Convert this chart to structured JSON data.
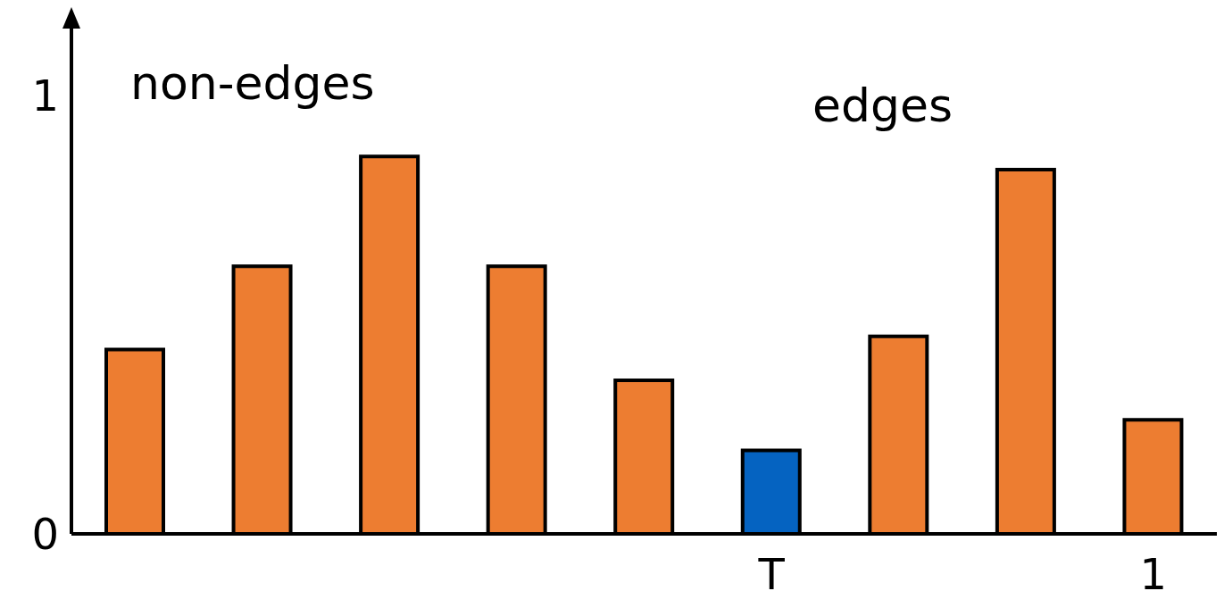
{
  "chart_data": {
    "type": "bar",
    "categories": [
      null,
      null,
      null,
      null,
      null,
      "T",
      null,
      null,
      "1"
    ],
    "values": [
      0.42,
      0.61,
      0.86,
      0.61,
      0.35,
      0.19,
      0.45,
      0.83,
      0.26
    ],
    "colors": [
      "#ed7d31",
      "#ed7d31",
      "#ed7d31",
      "#ed7d31",
      "#ed7d31",
      "#0563c1",
      "#ed7d31",
      "#ed7d31",
      "#ed7d31"
    ],
    "ylim": [
      0,
      1.17
    ],
    "yticks": [
      0,
      1
    ],
    "grid": false,
    "annotations": [
      "non-edges",
      "edges"
    ]
  }
}
